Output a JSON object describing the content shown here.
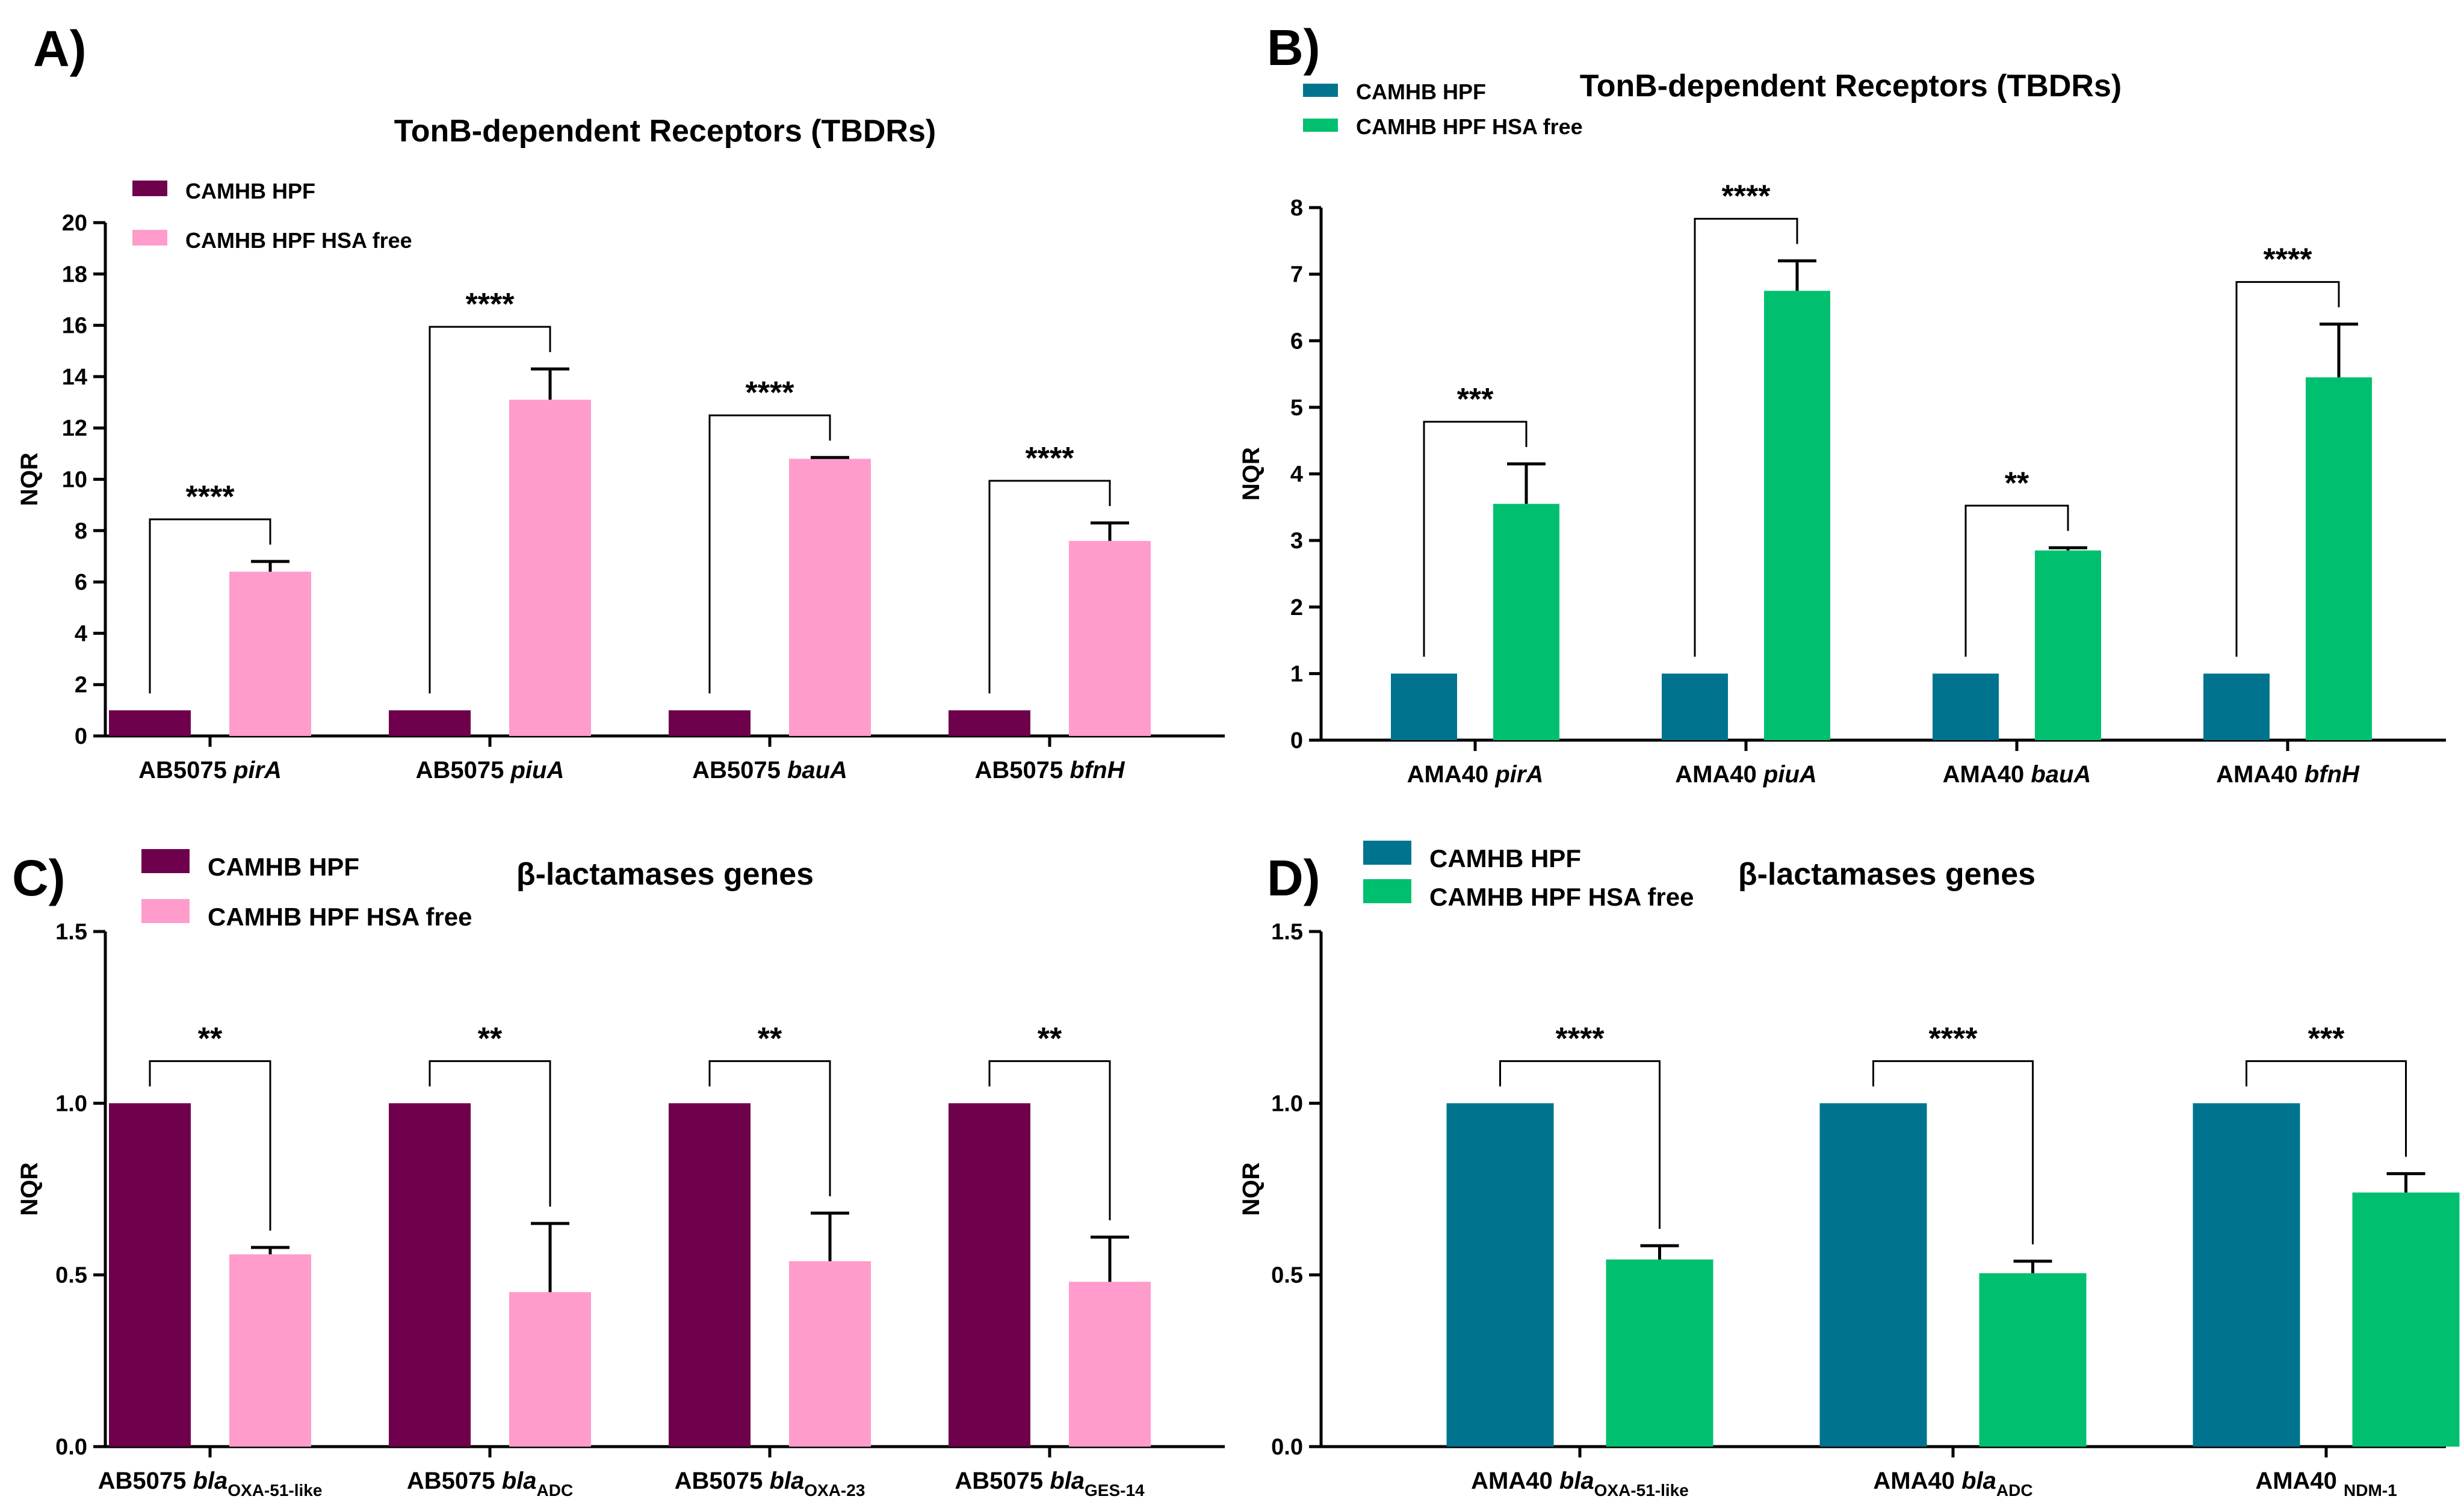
{
  "colors": {
    "abDark": "#6e004c",
    "abLight": "#ff9ccb",
    "amaDark": "#00738f",
    "amaLight": "#00c070",
    "axis": "#000000"
  },
  "chart_data": [
    {
      "panel": "A)",
      "type": "bar",
      "title": "TonB-dependent Receptors (TBDRs)",
      "ylabel": "NQR",
      "ylim": [
        0,
        20
      ],
      "yticks": [
        0,
        2,
        4,
        6,
        8,
        10,
        12,
        14,
        16,
        18,
        20
      ],
      "tick_decimals": 0,
      "legend_position": "top-left",
      "palette": "ab",
      "categories": [
        {
          "prefix": "AB5075",
          "gene": "pirA",
          "sub": ""
        },
        {
          "prefix": "AB5075",
          "gene": "piuA",
          "sub": ""
        },
        {
          "prefix": "AB5075",
          "gene": "bauA",
          "sub": ""
        },
        {
          "prefix": "AB5075",
          "gene": "bfnH",
          "sub": ""
        }
      ],
      "series": [
        {
          "name": "CAMHB HPF",
          "values": [
            1,
            1,
            1,
            1
          ],
          "errors": [
            0,
            0,
            0,
            0
          ]
        },
        {
          "name": "CAMHB HPF HSA free",
          "values": [
            6.4,
            13.1,
            10.8,
            7.6
          ],
          "errors": [
            0.4,
            1.2,
            0.05,
            0.7
          ]
        }
      ],
      "significance": [
        "****",
        "****",
        "****",
        "****"
      ]
    },
    {
      "panel": "B)",
      "type": "bar",
      "title": "TonB-dependent Receptors (TBDRs)",
      "ylabel": "NQR",
      "ylim": [
        0,
        8
      ],
      "yticks": [
        0,
        1,
        2,
        3,
        4,
        5,
        6,
        7,
        8
      ],
      "tick_decimals": 0,
      "legend_position": "top-left",
      "palette": "ama",
      "categories": [
        {
          "prefix": "AMA40",
          "gene": "pirA",
          "sub": ""
        },
        {
          "prefix": "AMA40",
          "gene": "piuA",
          "sub": ""
        },
        {
          "prefix": "AMA40",
          "gene": "bauA",
          "sub": ""
        },
        {
          "prefix": "AMA40",
          "gene": "bfnH",
          "sub": ""
        }
      ],
      "series": [
        {
          "name": "CAMHB HPF",
          "values": [
            1,
            1,
            1,
            1
          ],
          "errors": [
            0,
            0,
            0,
            0
          ]
        },
        {
          "name": "CAMHB HPF HSA free",
          "values": [
            3.55,
            6.75,
            2.85,
            5.45
          ],
          "errors": [
            0.6,
            0.45,
            0.04,
            0.8
          ]
        }
      ],
      "significance": [
        "***",
        "****",
        "**",
        "****"
      ]
    },
    {
      "panel": "C)",
      "type": "bar",
      "title": "β-lactamases genes",
      "ylabel": "NQR",
      "ylim": [
        0,
        1.5
      ],
      "yticks": [
        0,
        0.5,
        1.0,
        1.5
      ],
      "tick_decimals": 1,
      "legend_position": "top-left",
      "palette": "ab",
      "categories": [
        {
          "prefix": "AB5075",
          "gene": "bla",
          "sub": "OXA-51-like"
        },
        {
          "prefix": "AB5075",
          "gene": "bla",
          "sub": "ADC"
        },
        {
          "prefix": "AB5075",
          "gene": "bla",
          "sub": "OXA-23"
        },
        {
          "prefix": "AB5075",
          "gene": "bla",
          "sub": "GES-14"
        }
      ],
      "series": [
        {
          "name": "CAMHB HPF",
          "values": [
            1,
            1,
            1,
            1
          ],
          "errors": [
            0,
            0,
            0,
            0
          ]
        },
        {
          "name": "CAMHB HPF HSA free",
          "values": [
            0.56,
            0.45,
            0.54,
            0.48
          ],
          "errors": [
            0.02,
            0.2,
            0.14,
            0.13
          ]
        }
      ],
      "significance": [
        "**",
        "**",
        "**",
        "**"
      ]
    },
    {
      "panel": "D)",
      "type": "bar",
      "title": "β-lactamases genes",
      "ylabel": "NQR",
      "ylim": [
        0,
        1.5
      ],
      "yticks": [
        0,
        0.5,
        1.0,
        1.5
      ],
      "tick_decimals": 1,
      "legend_position": "top-left",
      "palette": "ama",
      "categories": [
        {
          "prefix": "AMA40",
          "gene": "bla",
          "sub": "OXA-51-like"
        },
        {
          "prefix": "AMA40",
          "gene": "bla",
          "sub": "ADC"
        },
        {
          "prefix": "AMA40",
          "gene": "",
          "sub": "NDM-1"
        }
      ],
      "series": [
        {
          "name": "CAMHB HPF",
          "values": [
            1,
            1,
            1
          ],
          "errors": [
            0,
            0,
            0
          ]
        },
        {
          "name": "CAMHB HPF HSA free",
          "values": [
            0.545,
            0.505,
            0.74
          ],
          "errors": [
            0.04,
            0.035,
            0.055
          ]
        }
      ],
      "significance": [
        "****",
        "****",
        "***"
      ]
    }
  ]
}
